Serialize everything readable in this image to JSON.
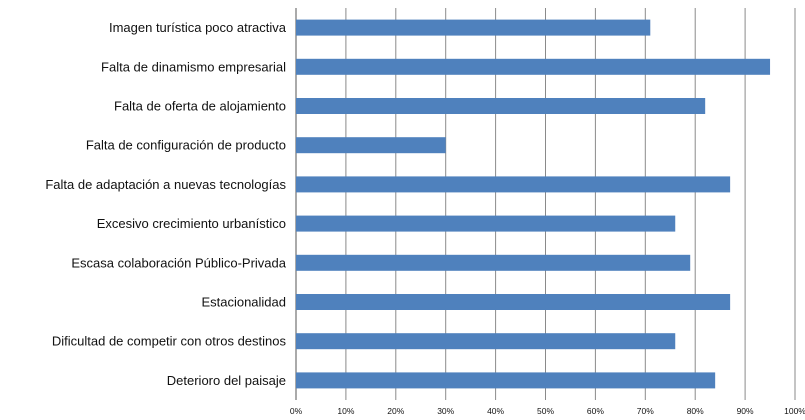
{
  "chart_data": {
    "type": "bar",
    "orientation": "horizontal",
    "categories": [
      "Imagen turística poco atractiva",
      "Falta de dinamismo empresarial",
      "Falta de oferta de alojamiento",
      "Falta de configuración de producto",
      "Falta de adaptación a nuevas tecnologías",
      "Excesivo crecimiento urbanístico",
      "Escasa colaboración Público-Privada",
      "Estacionalidad",
      "Dificultad de competir con otros destinos",
      "Deterioro del paisaje"
    ],
    "values": [
      71,
      95,
      82,
      30,
      87,
      76,
      79,
      87,
      76,
      84
    ],
    "xlim": [
      0,
      100
    ],
    "ticks": [
      "0%",
      "10%",
      "20%",
      "30%",
      "40%",
      "50%",
      "60%",
      "70%",
      "80%",
      "90%",
      "100%"
    ],
    "grid": true,
    "bar_color": "#4f81bd"
  }
}
